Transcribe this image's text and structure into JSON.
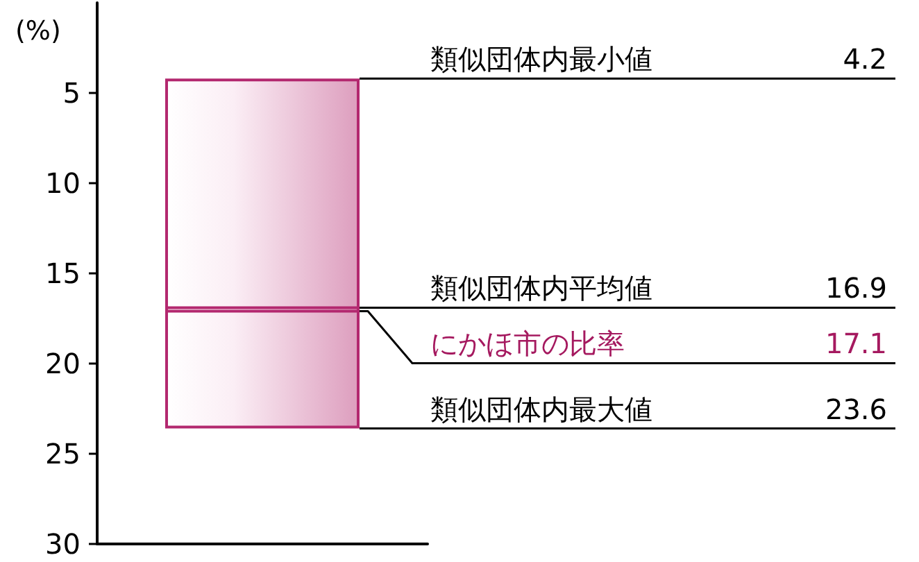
{
  "chart_data": {
    "type": "bar",
    "ylabel": "(%)",
    "categories": [
      null
    ],
    "base": [
      4.2
    ],
    "values": [
      19.4
    ],
    "color": "#b3286f",
    "annotations": [
      "4.2",
      "16.9",
      "17.1",
      "23.6"
    ],
    "ylim": [
      30,
      0
    ],
    "yticks": [
      5,
      10,
      15,
      20,
      25,
      30
    ],
    "grid": false,
    "ref_lines": [
      {
        "axis": "y",
        "value": 4.2,
        "label": "類似団体内最小値"
      },
      {
        "axis": "y",
        "value": 16.9,
        "label": "類似団体内平均値"
      },
      {
        "axis": "y",
        "value": 17.1,
        "label": "にかほ市の比率",
        "color": "#a5195f"
      },
      {
        "axis": "y",
        "value": 23.6,
        "label": "類似団体内最大値"
      }
    ]
  }
}
